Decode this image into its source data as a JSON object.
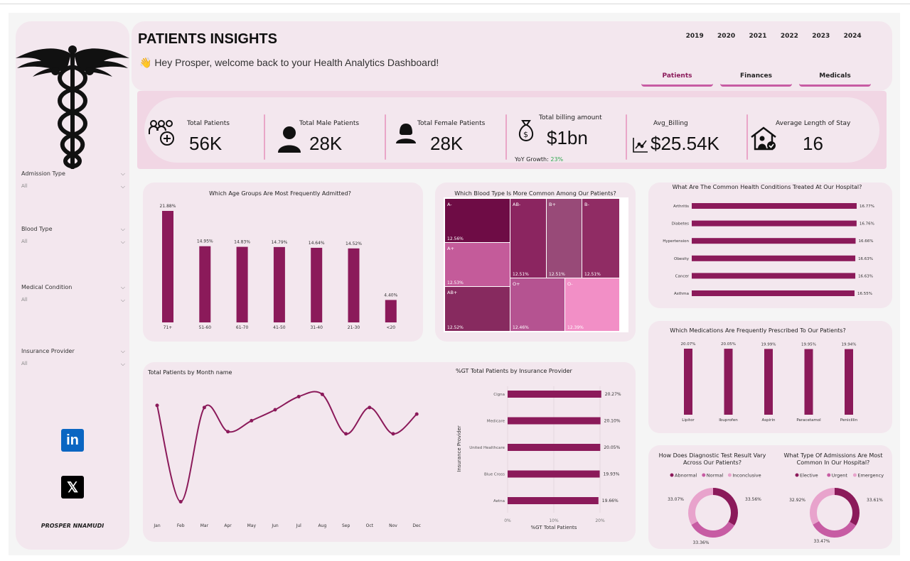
{
  "header": {
    "title": "PATIENTS INSIGHTS",
    "welcome": "👋 Hey Prosper, welcome back to your Health Analytics Dashboard!",
    "years": [
      "2019",
      "2020",
      "2021",
      "2022",
      "2023",
      "2024"
    ],
    "tabs": [
      {
        "label": "Patients",
        "active": true
      },
      {
        "label": "Finances",
        "active": false
      },
      {
        "label": "Medicals",
        "active": false
      }
    ]
  },
  "sidebar": {
    "filters": [
      {
        "label": "Admission Type",
        "value": "All"
      },
      {
        "label": "Blood Type",
        "value": "All"
      },
      {
        "label": "Medical Condition",
        "value": "All"
      },
      {
        "label": "Insurance Provider",
        "value": "All"
      }
    ],
    "social": [
      {
        "name": "linkedin",
        "glyph": "in",
        "color": "#0a66c2"
      },
      {
        "name": "x",
        "glyph": "𝕏",
        "color": "#000000"
      }
    ],
    "author": "PROSPER NNAMUDI"
  },
  "kpis": {
    "total_patients": {
      "label": "Total Patients",
      "value": "56K"
    },
    "male_patients": {
      "label": "Total Male Patients",
      "value": "28K"
    },
    "female_patients": {
      "label": "Total Female Patients",
      "value": "28K"
    },
    "billing": {
      "label": "Total billing amount",
      "value": "$1bn",
      "yoy_label": "YoY Growth:",
      "yoy_value": "23%"
    },
    "avg_billing": {
      "label": "Avg_Billing",
      "value": "$25.54K"
    },
    "avg_stay": {
      "label": "Average Length of Stay",
      "value": "16"
    }
  },
  "colors": {
    "primary": "#8b1a5a",
    "card_bg": "#f3e7ee",
    "accent_border": "#c75ca3",
    "yoy_green": "#2fa84f",
    "treemap": [
      "#6e0c45",
      "#8b2560",
      "#984a78",
      "#902c64",
      "#c45b9a",
      "#872a5f",
      "#b55391",
      "#e998c4",
      "#f28fc6"
    ],
    "donut": [
      "#8b1a5a",
      "#c75ca3",
      "#e8a3cc"
    ]
  },
  "charts": {
    "age_groups": {
      "title": "Which Age Groups Are Most Frequently Admitted?",
      "chart_data": {
        "type": "bar",
        "categories": [
          "71+",
          "51-60",
          "61-70",
          "41-50",
          "31-40",
          "21-30",
          "<20"
        ],
        "values": [
          21.88,
          14.95,
          14.83,
          14.79,
          14.64,
          14.52,
          4.4
        ],
        "labels": [
          "21.88%",
          "14.95%",
          "14.83%",
          "14.79%",
          "14.64%",
          "14.52%",
          "4.40%"
        ]
      }
    },
    "blood_type": {
      "title": "Which Blood Type Is More Common Among Our Patients?",
      "chart_data": {
        "type": "treemap",
        "categories": [
          "A-",
          "A+",
          "AB+",
          "AB-",
          "B+",
          "B-",
          "O+",
          "O-"
        ],
        "values": [
          12.56,
          12.53,
          12.52,
          12.51,
          12.51,
          12.51,
          12.46,
          12.39
        ],
        "labels": [
          "12.56%",
          "12.53%",
          "12.52%",
          "12.51%",
          "12.51%",
          "12.51%",
          "12.46%",
          "12.39%"
        ]
      }
    },
    "conditions": {
      "title": "What Are The Common Health Conditions Treated At Our Hospital?",
      "chart_data": {
        "type": "bar",
        "orientation": "horizontal",
        "categories": [
          "Arthritis",
          "Diabetes",
          "Hypertension",
          "Obesity",
          "Cancer",
          "Asthma"
        ],
        "values": [
          16.77,
          16.76,
          16.66,
          16.63,
          16.63,
          16.55
        ],
        "labels": [
          "16.77%",
          "16.76%",
          "16.66%",
          "16.63%",
          "16.63%",
          "16.55%"
        ]
      }
    },
    "monthly": {
      "title": "Total Patients by Month name",
      "chart_data": {
        "type": "line",
        "categories": [
          "Jan",
          "Feb",
          "Mar",
          "Apr",
          "May",
          "Jun",
          "Jul",
          "Aug",
          "Sep",
          "Oct",
          "Nov",
          "Dec"
        ],
        "values": [
          4800,
          4360,
          4790,
          4680,
          4730,
          4780,
          4840,
          4850,
          4670,
          4790,
          4670,
          4760
        ],
        "ylim": [
          4300,
          4900
        ]
      }
    },
    "insurance": {
      "title": "%GT Total Patients by Insurance Provider",
      "chart_data": {
        "type": "bar",
        "orientation": "horizontal",
        "categories": [
          "Cigna",
          "Medicare",
          "United Healthcare",
          "Blue Cross",
          "Aetna"
        ],
        "values": [
          20.27,
          20.1,
          20.05,
          19.93,
          19.66
        ],
        "labels": [
          "20.27%",
          "20.10%",
          "20.05%",
          "19.93%",
          "19.66%"
        ],
        "xticks": [
          "0%",
          "10%",
          "20%"
        ],
        "xlim": [
          0,
          20
        ],
        "xlabel": "%GT Total Patients",
        "ylabel": "Insurance Provider"
      }
    },
    "medications": {
      "title": "Which Medications Are Frequently Prescribed To Our Patients?",
      "chart_data": {
        "type": "bar",
        "categories": [
          "Lipitor",
          "Ibuprofen",
          "Aspirin",
          "Paracetamol",
          "Penicillin"
        ],
        "values": [
          20.07,
          20.05,
          19.99,
          19.95,
          19.94
        ],
        "labels": [
          "20.07%",
          "20.05%",
          "19.99%",
          "19.95%",
          "19.94%"
        ]
      }
    },
    "test_results": {
      "title": "How Does Diagnostic Test Result Vary Across Our Patients?",
      "chart_data": {
        "type": "pie",
        "donut": true,
        "categories": [
          "Abnormal",
          "Normal",
          "Inconclusive"
        ],
        "values": [
          33.56,
          33.36,
          33.07
        ],
        "labels": [
          "33.56%",
          "33.36%",
          "33.07%"
        ]
      }
    },
    "admissions": {
      "title": "What Type Of Admissions Are Most Common In Our Hospital?",
      "chart_data": {
        "type": "pie",
        "donut": true,
        "categories": [
          "Elective",
          "Urgent",
          "Emergency"
        ],
        "values": [
          33.61,
          33.47,
          32.92
        ],
        "labels": [
          "33.61%",
          "33.47%",
          "32.92%"
        ]
      }
    }
  }
}
